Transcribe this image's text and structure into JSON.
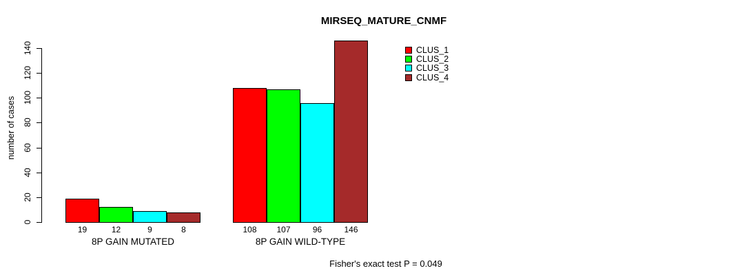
{
  "chart_data": {
    "type": "bar",
    "title": "MIRSEQ_MATURE_CNMF",
    "xlabel": "",
    "ylabel": "number of cases",
    "ylim": [
      0,
      140
    ],
    "yticks": [
      0,
      20,
      40,
      60,
      80,
      100,
      120,
      140
    ],
    "grid": false,
    "legend_position": "top-right",
    "categories": [
      "8P GAIN MUTATED",
      "8P GAIN WILD-TYPE"
    ],
    "series": [
      {
        "name": "CLUS_1",
        "color": "#FF0000",
        "values": [
          19,
          108
        ]
      },
      {
        "name": "CLUS_2",
        "color": "#00FF00",
        "values": [
          12,
          107
        ]
      },
      {
        "name": "CLUS_3",
        "color": "#00FFFF",
        "values": [
          9,
          96
        ]
      },
      {
        "name": "CLUS_4",
        "color": "#A52A2A",
        "values": [
          8,
          146
        ]
      }
    ],
    "bar_value_labels": [
      [
        "19",
        "12",
        "9",
        "8"
      ],
      [
        "108",
        "107",
        "96",
        "146"
      ]
    ],
    "annotation": "Fisher's exact test P = 0.049"
  },
  "colors": {
    "axis": "#000000",
    "background": "#FFFFFF",
    "text": "#000000"
  }
}
